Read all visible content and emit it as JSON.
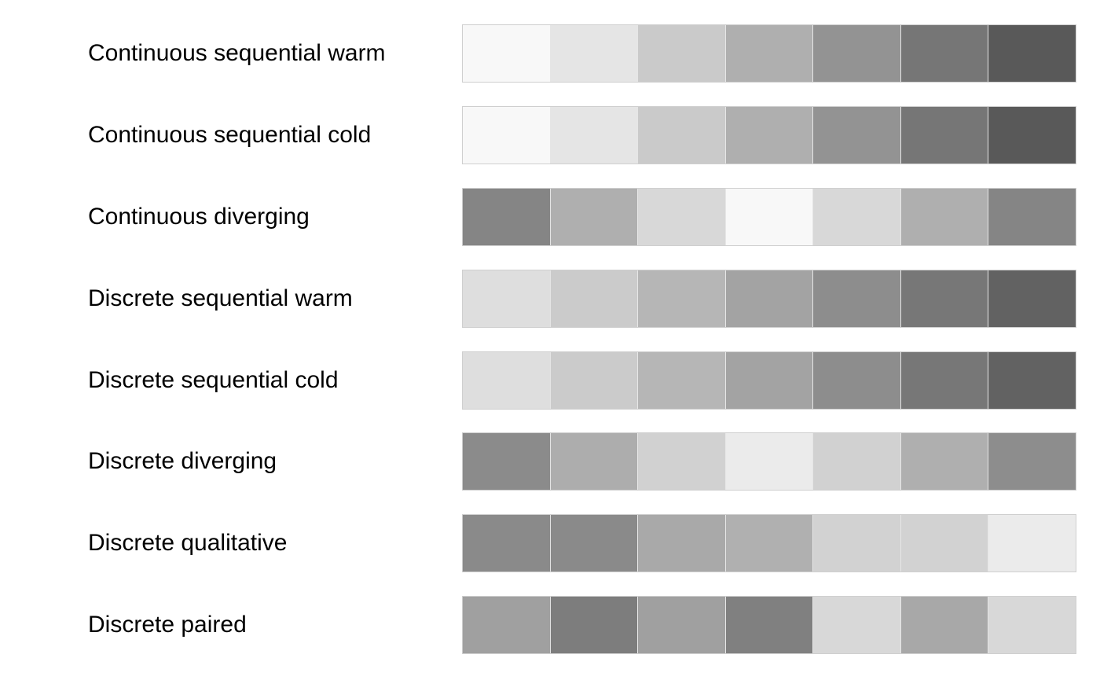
{
  "palettes": [
    {
      "label": "Continuous sequential warm",
      "swatches": [
        "#f8f8f8",
        "#e5e5e5",
        "#cacaca",
        "#afafaf",
        "#939393",
        "#767676",
        "#595959"
      ]
    },
    {
      "label": "Continuous sequential cold",
      "swatches": [
        "#f8f8f8",
        "#e5e5e5",
        "#cacaca",
        "#afafaf",
        "#939393",
        "#767676",
        "#595959"
      ]
    },
    {
      "label": "Continuous diverging",
      "swatches": [
        "#858585",
        "#afafaf",
        "#d8d8d8",
        "#f8f8f8",
        "#d8d8d8",
        "#afafaf",
        "#858585"
      ]
    },
    {
      "label": "Discrete sequential warm",
      "swatches": [
        "#dedede",
        "#cbcbcb",
        "#b6b6b6",
        "#a3a3a3",
        "#8d8d8d",
        "#777777",
        "#626262"
      ]
    },
    {
      "label": "Discrete sequential cold",
      "swatches": [
        "#dedede",
        "#cbcbcb",
        "#b6b6b6",
        "#a3a3a3",
        "#8d8d8d",
        "#777777",
        "#626262"
      ]
    },
    {
      "label": "Discrete diverging",
      "swatches": [
        "#8b8b8b",
        "#adadad",
        "#d1d1d1",
        "#ebebeb",
        "#d1d1d1",
        "#afafaf",
        "#8d8d8d"
      ]
    },
    {
      "label": "Discrete qualitative",
      "swatches": [
        "#8a8a8a",
        "#8a8a8a",
        "#a9a9a9",
        "#b0b0b0",
        "#d2d2d2",
        "#d2d2d2",
        "#ebebeb"
      ]
    },
    {
      "label": "Discrete paired",
      "swatches": [
        "#a0a0a0",
        "#7d7d7d",
        "#a0a0a0",
        "#808080",
        "#d8d8d8",
        "#a8a8a8",
        "#d8d8d8"
      ]
    }
  ]
}
